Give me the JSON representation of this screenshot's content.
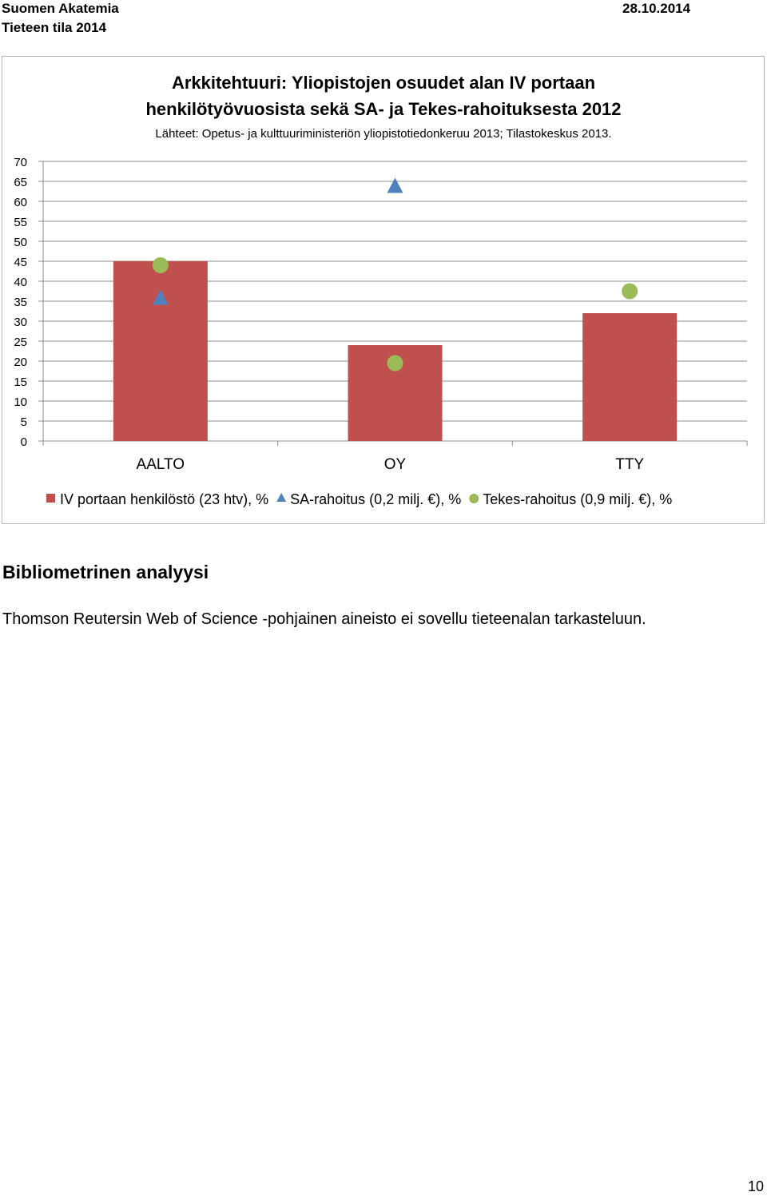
{
  "header": {
    "org": "Suomen Akatemia",
    "report": "Tieteen tila 2014",
    "date": "28.10.2014"
  },
  "chart_data": {
    "type": "bar",
    "title": "Arkkitehtuuri: Yliopistojen osuudet alan IV portaan henkilötyövuosista sekä SA- ja Tekes-rahoituksesta 2012",
    "title_lines": [
      "Arkkitehtuuri: Yliopistojen osuudet alan IV portaan",
      "henkilötyövuosista sekä SA- ja Tekes-rahoituksesta 2012"
    ],
    "subtitle": "Lähteet: Opetus- ja kulttuuriministeriön yliopistotiedonkeruu 2013; Tilastokeskus 2013.",
    "categories": [
      "AALTO",
      "OY",
      "TTY"
    ],
    "ylim": [
      0,
      70
    ],
    "yticks": [
      0,
      5,
      10,
      15,
      20,
      25,
      30,
      35,
      40,
      45,
      50,
      55,
      60,
      65,
      70
    ],
    "grid": true,
    "legend_position": "bottom",
    "series": [
      {
        "name": "IV portaan henkilöstö (23 htv), %",
        "kind": "bar",
        "marker": "square",
        "color": "#c0504d",
        "values": [
          45,
          24,
          32
        ]
      },
      {
        "name": "SA-rahoitus (0,2 milj. €), %",
        "kind": "marker",
        "marker": "triangle",
        "color": "#4f81bd",
        "values": [
          36,
          64,
          null
        ]
      },
      {
        "name": "Tekes-rahoitus (0,9 milj. €), %",
        "kind": "marker",
        "marker": "circle",
        "color": "#9bbb59",
        "values": [
          44,
          19.5,
          37.5
        ]
      }
    ]
  },
  "section": {
    "heading": "Bibliometrinen analyysi",
    "body": "Thomson Reutersin Web of Science -pohjainen aineisto ei sovellu tieteenalan tarkasteluun."
  },
  "page_number": "10"
}
